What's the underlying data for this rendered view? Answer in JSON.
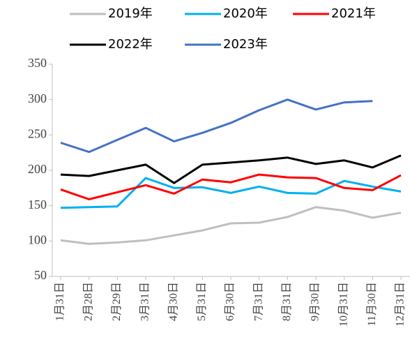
{
  "chart_data": {
    "type": "line",
    "categories": [
      "1月31日",
      "2月28日",
      "2月29日",
      "3月31日",
      "4月30日",
      "5月31日",
      "6月30日",
      "7月31日",
      "8月31日",
      "9月30日",
      "10月31日",
      "11月30日",
      "12月31日"
    ],
    "series": [
      {
        "name": "2019年",
        "color": "#bfbfbf",
        "values": [
          101,
          96,
          98,
          101,
          108,
          115,
          125,
          126,
          134,
          148,
          143,
          133,
          140
        ]
      },
      {
        "name": "2020年",
        "color": "#00b0f0",
        "values": [
          147,
          148,
          149,
          189,
          175,
          176,
          168,
          177,
          168,
          167,
          185,
          177,
          170
        ]
      },
      {
        "name": "2021年",
        "color": "#ff0000",
        "values": [
          173,
          159,
          169,
          179,
          167,
          187,
          183,
          194,
          190,
          189,
          175,
          172,
          193
        ]
      },
      {
        "name": "2022年",
        "color": "#000000",
        "values": [
          194,
          192,
          200,
          208,
          182,
          208,
          211,
          214,
          218,
          209,
          214,
          204,
          221
        ]
      },
      {
        "name": "2023年",
        "color": "#4472c4",
        "values": [
          239,
          226,
          243,
          260,
          241,
          253,
          267,
          285,
          300,
          286,
          296,
          298,
          null
        ]
      }
    ],
    "ylim": [
      50,
      350
    ],
    "yticks": [
      50,
      100,
      150,
      200,
      250,
      300,
      350
    ],
    "grid": false
  }
}
